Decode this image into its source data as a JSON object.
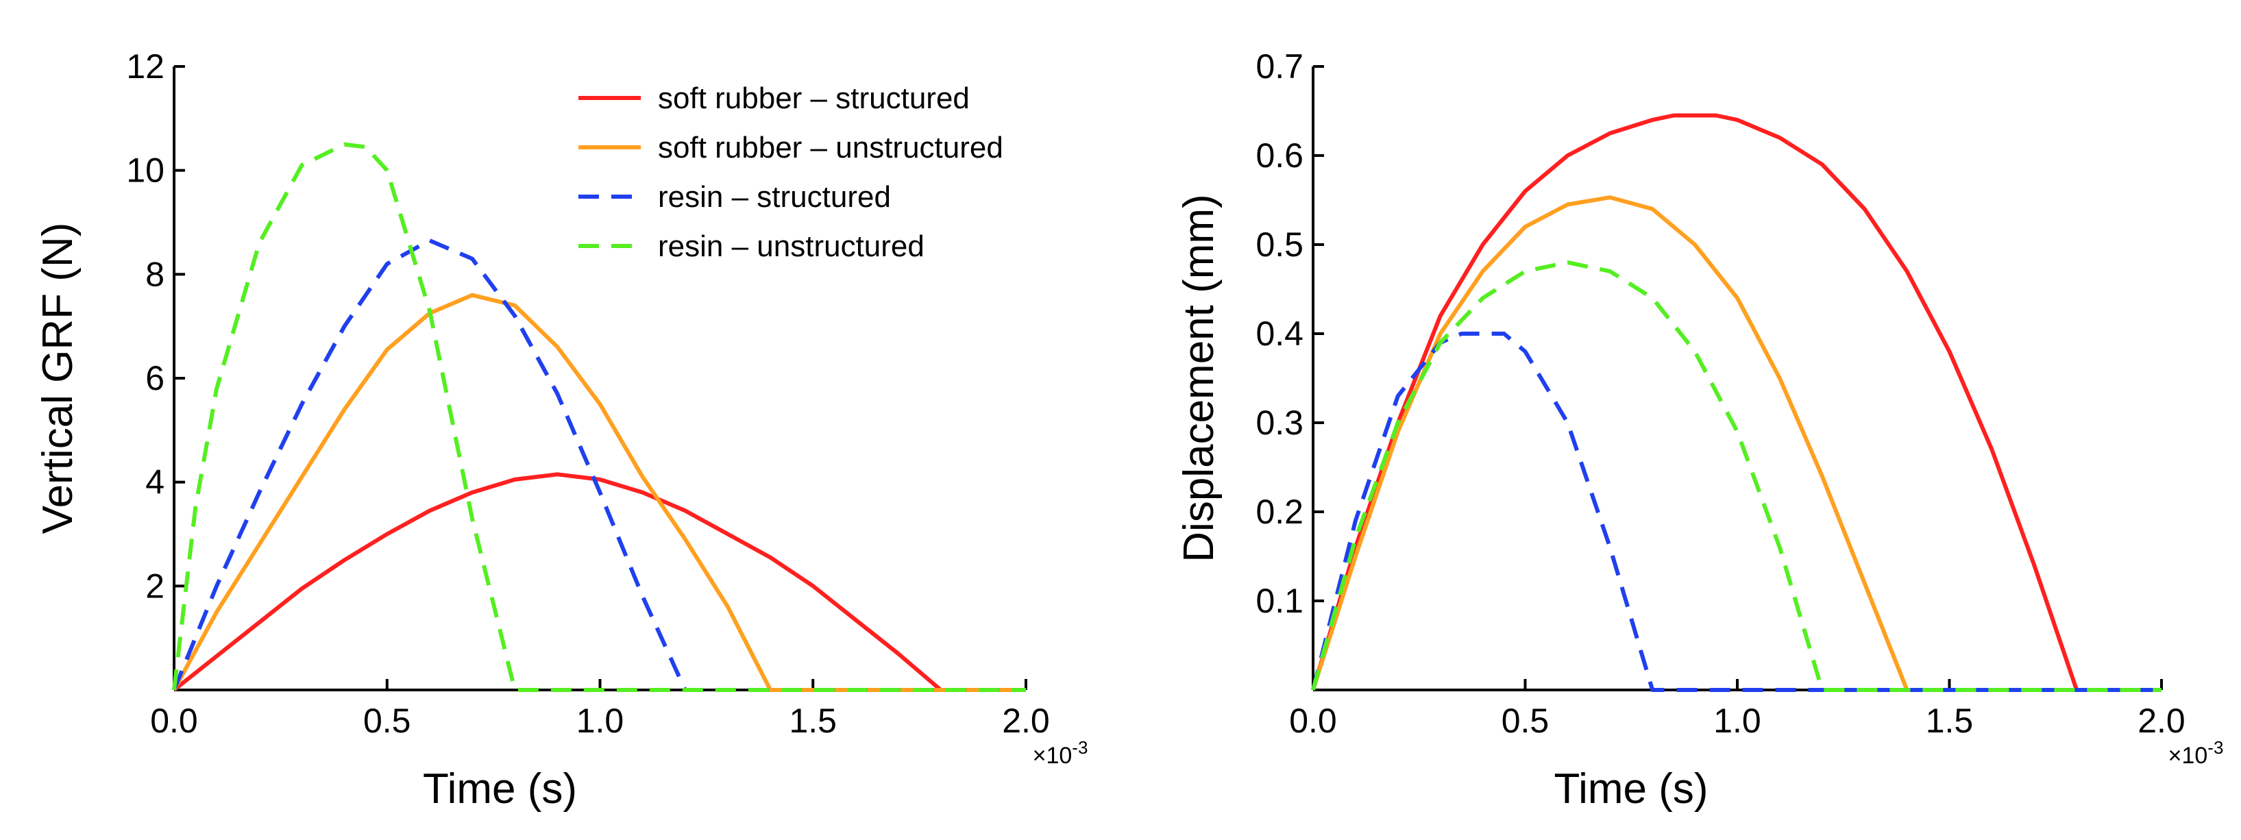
{
  "chart_data": [
    {
      "type": "line",
      "id": "grf",
      "xlabel": "Time (s)",
      "ylabel": "Vertical GRF (N)",
      "x_multiplier": "×10",
      "x_multiplier_exp": "-3",
      "xlim": [
        0,
        2.0
      ],
      "ylim": [
        0,
        12
      ],
      "xticks": [
        0,
        0.5,
        1.0,
        1.5,
        2.0
      ],
      "xtick_labels": [
        "0.0",
        "0.5",
        "1.0",
        "1.5",
        "2.0"
      ],
      "yticks": [
        2,
        4,
        6,
        8,
        10,
        12
      ],
      "ytick_labels": [
        "2",
        "4",
        "6",
        "8",
        "10",
        "12"
      ],
      "grid": false,
      "legend_position": "top-right",
      "series": [
        {
          "name": "soft rubber – structured",
          "color": "#ff2020",
          "dashed": false,
          "x": [
            0,
            0.1,
            0.2,
            0.3,
            0.4,
            0.5,
            0.6,
            0.7,
            0.8,
            0.9,
            1.0,
            1.1,
            1.2,
            1.3,
            1.4,
            1.5,
            1.6,
            1.7,
            1.8,
            2.0
          ],
          "y": [
            0,
            0.65,
            1.3,
            1.95,
            2.5,
            3.0,
            3.45,
            3.8,
            4.05,
            4.15,
            4.05,
            3.8,
            3.45,
            3.0,
            2.55,
            2.0,
            1.35,
            0.7,
            0,
            0
          ]
        },
        {
          "name": "soft rubber – unstructured",
          "color": "#ffa020",
          "dashed": false,
          "x": [
            0,
            0.1,
            0.2,
            0.3,
            0.4,
            0.5,
            0.6,
            0.7,
            0.8,
            0.9,
            1.0,
            1.1,
            1.2,
            1.3,
            1.4,
            2.0
          ],
          "y": [
            0,
            1.5,
            2.8,
            4.1,
            5.4,
            6.55,
            7.25,
            7.6,
            7.4,
            6.6,
            5.5,
            4.1,
            2.9,
            1.6,
            0,
            0
          ]
        },
        {
          "name": "resin – structured",
          "color": "#2040ee",
          "dashed": true,
          "x": [
            0,
            0.1,
            0.2,
            0.3,
            0.4,
            0.5,
            0.6,
            0.7,
            0.8,
            0.9,
            1.0,
            1.1,
            1.2,
            2.0
          ],
          "y": [
            0,
            2.0,
            3.8,
            5.5,
            7.0,
            8.2,
            8.65,
            8.3,
            7.2,
            5.7,
            3.8,
            1.8,
            0,
            0
          ]
        },
        {
          "name": "resin – unstructured",
          "color": "#55ee22",
          "dashed": true,
          "x": [
            0,
            0.05,
            0.1,
            0.2,
            0.3,
            0.4,
            0.45,
            0.5,
            0.6,
            0.7,
            0.8,
            2.0
          ],
          "y": [
            0,
            3.5,
            5.8,
            8.6,
            10.1,
            10.5,
            10.45,
            10.0,
            7.3,
            3.3,
            0,
            0
          ]
        }
      ]
    },
    {
      "type": "line",
      "id": "displacement",
      "xlabel": "Time (s)",
      "ylabel": "Displacement (mm)",
      "x_multiplier": "×10",
      "x_multiplier_exp": "-3",
      "xlim": [
        0,
        2.0
      ],
      "ylim": [
        0,
        0.7
      ],
      "xticks": [
        0,
        0.5,
        1.0,
        1.5,
        2.0
      ],
      "xtick_labels": [
        "0.0",
        "0.5",
        "1.0",
        "1.5",
        "2.0"
      ],
      "yticks": [
        0.1,
        0.2,
        0.3,
        0.4,
        0.5,
        0.6,
        0.7
      ],
      "ytick_labels": [
        "0.1",
        "0.2",
        "0.3",
        "0.4",
        "0.5",
        "0.6",
        "0.7"
      ],
      "grid": false,
      "series": [
        {
          "name": "soft rubber – structured",
          "color": "#ff2020",
          "dashed": false,
          "x": [
            0,
            0.1,
            0.2,
            0.3,
            0.4,
            0.5,
            0.6,
            0.7,
            0.8,
            0.85,
            0.95,
            1.0,
            1.1,
            1.2,
            1.3,
            1.4,
            1.5,
            1.6,
            1.7,
            1.8,
            2.0
          ],
          "y": [
            0,
            0.16,
            0.3,
            0.42,
            0.5,
            0.56,
            0.6,
            0.625,
            0.64,
            0.645,
            0.645,
            0.64,
            0.62,
            0.59,
            0.54,
            0.47,
            0.38,
            0.27,
            0.14,
            0,
            0
          ]
        },
        {
          "name": "soft rubber – unstructured",
          "color": "#ffa020",
          "dashed": false,
          "x": [
            0,
            0.1,
            0.2,
            0.3,
            0.4,
            0.5,
            0.6,
            0.7,
            0.8,
            0.9,
            1.0,
            1.1,
            1.2,
            1.3,
            1.4,
            2.0
          ],
          "y": [
            0,
            0.15,
            0.29,
            0.4,
            0.47,
            0.52,
            0.545,
            0.553,
            0.54,
            0.5,
            0.44,
            0.35,
            0.24,
            0.12,
            0,
            0
          ]
        },
        {
          "name": "resin – structured",
          "color": "#2040ee",
          "dashed": true,
          "x": [
            0,
            0.1,
            0.2,
            0.3,
            0.35,
            0.45,
            0.5,
            0.6,
            0.7,
            0.8,
            2.0
          ],
          "y": [
            0,
            0.19,
            0.33,
            0.39,
            0.4,
            0.4,
            0.38,
            0.3,
            0.16,
            0,
            0
          ]
        },
        {
          "name": "resin – unstructured",
          "color": "#55ee22",
          "dashed": true,
          "x": [
            0,
            0.1,
            0.2,
            0.3,
            0.4,
            0.5,
            0.6,
            0.7,
            0.8,
            0.9,
            1.0,
            1.1,
            1.2,
            2.0
          ],
          "y": [
            0,
            0.17,
            0.3,
            0.39,
            0.44,
            0.47,
            0.48,
            0.47,
            0.44,
            0.38,
            0.29,
            0.16,
            0,
            0
          ]
        }
      ]
    }
  ]
}
